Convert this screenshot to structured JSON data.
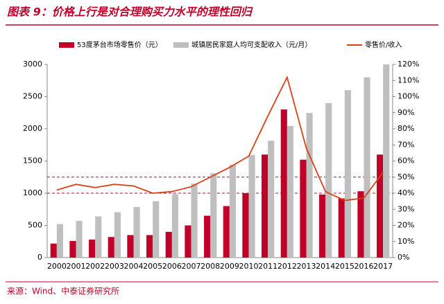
{
  "chart_data": {
    "type": "bar-line",
    "title": "图表 9：价格上行是对合理购买力水平的理性回归",
    "source": "来源：Wind、中泰证券研究所",
    "categories": [
      "2000",
      "2001",
      "2002",
      "2003",
      "2004",
      "2005",
      "2006",
      "2007",
      "2008",
      "2009",
      "2010",
      "2011",
      "2012",
      "2013",
      "2014",
      "2015",
      "2016",
      "2017"
    ],
    "series": [
      {
        "name": "53度茅台市场零售价（元）",
        "type": "bar",
        "color": "#c00029",
        "values": [
          218,
          258,
          280,
          320,
          350,
          350,
          400,
          500,
          650,
          800,
          1000,
          1600,
          2300,
          1520,
          980,
          920,
          1030,
          1600
        ]
      },
      {
        "name": "城镇居民家庭人均可支配收入（元/月）",
        "type": "bar",
        "color": "#bfbfbf",
        "values": [
          520,
          570,
          640,
          705,
          785,
          875,
          985,
          1150,
          1310,
          1440,
          1595,
          1815,
          2045,
          2245,
          2400,
          2600,
          2800,
          3000
        ]
      },
      {
        "name": "零售价/收入",
        "type": "line",
        "axis": "y2",
        "color": "#d9401a",
        "values": [
          42,
          45.5,
          43.5,
          45.5,
          44.5,
          40,
          41,
          44,
          50,
          56,
          63,
          88,
          112,
          68,
          41,
          35.5,
          37,
          53
        ]
      }
    ],
    "ylim": [
      0,
      3000
    ],
    "yticks": [
      0,
      500,
      1000,
      1500,
      2000,
      2500,
      3000
    ],
    "y2lim": [
      0,
      120
    ],
    "y2ticks": [
      {
        "value": 0,
        "label": "0%"
      },
      {
        "value": 10,
        "label": "10%"
      },
      {
        "value": 20,
        "label": "20%"
      },
      {
        "value": 30,
        "label": "30%"
      },
      {
        "value": 40,
        "label": "40%"
      },
      {
        "value": 50,
        "label": "50%"
      },
      {
        "value": 60,
        "label": "60%"
      },
      {
        "value": 70,
        "label": "70%"
      },
      {
        "value": 80,
        "label": "80%"
      },
      {
        "value": 90,
        "label": "90%"
      },
      {
        "value": 100,
        "label": "100%"
      },
      {
        "value": 110,
        "label": "110%"
      },
      {
        "value": 120,
        "label": "120%"
      }
    ],
    "reference_lines_y2": [
      50,
      40
    ],
    "reference_color": "#c00029"
  }
}
